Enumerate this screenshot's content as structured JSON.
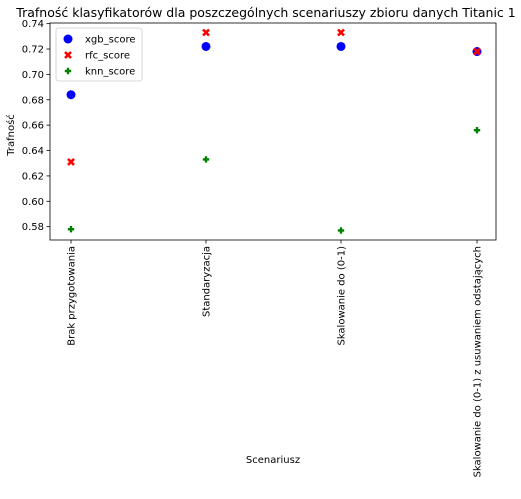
{
  "chart_data": {
    "type": "scatter",
    "title": "Trafność klasyfikatorów dla poszczególnych scenariuszy zbioru danych Titanic 1",
    "xlabel": "Scenariusz",
    "ylabel": "Trafność",
    "categories": [
      "Brak przygotowania",
      "Standaryzacja",
      "Skalowanie do (0-1)",
      "Skalowanie do (0-1) z usuwaniem odstających"
    ],
    "ylim": [
      0.5695,
      0.7405
    ],
    "yticks": [
      0.58,
      0.6,
      0.62,
      0.64,
      0.66,
      0.68,
      0.7,
      0.72,
      0.74
    ],
    "ytick_labels": [
      "0.58",
      "0.60",
      "0.62",
      "0.64",
      "0.66",
      "0.68",
      "0.70",
      "0.72",
      "0.74"
    ],
    "grid": false,
    "legend_position": "top-left",
    "series": [
      {
        "name": "xgb_score",
        "marker": "circle",
        "color": "#0000ff",
        "values": [
          0.684,
          0.722,
          0.722,
          0.718
        ]
      },
      {
        "name": "rfc_score",
        "marker": "x",
        "color": "#ff0000",
        "values": [
          0.631,
          0.733,
          0.733,
          0.718
        ]
      },
      {
        "name": "knn_score",
        "marker": "plus",
        "color": "#008000",
        "values": [
          0.578,
          0.633,
          0.577,
          0.656
        ]
      }
    ]
  }
}
